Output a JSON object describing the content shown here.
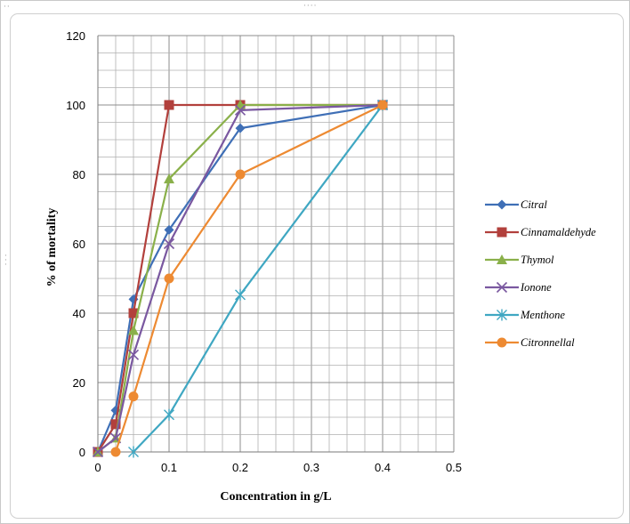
{
  "chart_data": {
    "type": "line",
    "title": "",
    "xlabel": "Concentration in g/L",
    "ylabel": "% of mortality",
    "xlim": [
      0,
      0.5
    ],
    "ylim": [
      0,
      120
    ],
    "x_ticks": [
      "0",
      "0.1",
      "0.2",
      "0.3",
      "0.4",
      "0.5"
    ],
    "y_ticks": [
      "0",
      "20",
      "40",
      "60",
      "80",
      "100",
      "120"
    ],
    "grid": true,
    "legend_position": "right",
    "series": [
      {
        "name": "Citral",
        "color": "#3F6FB6",
        "marker": "diamond",
        "points": [
          [
            0,
            0
          ],
          [
            0.025,
            12
          ],
          [
            0.05,
            44
          ],
          [
            0.1,
            64
          ],
          [
            0.2,
            93.3
          ],
          [
            0.4,
            100
          ]
        ]
      },
      {
        "name": "Cinnamaldehyde",
        "color": "#B2403C",
        "marker": "square",
        "points": [
          [
            0,
            0
          ],
          [
            0.025,
            8
          ],
          [
            0.05,
            40
          ],
          [
            0.1,
            100
          ],
          [
            0.2,
            100
          ],
          [
            0.4,
            100
          ]
        ]
      },
      {
        "name": "Thymol",
        "color": "#8AB04A",
        "marker": "triangle",
        "points": [
          [
            0,
            0
          ],
          [
            0.025,
            4
          ],
          [
            0.05,
            35
          ],
          [
            0.1,
            78.7
          ],
          [
            0.2,
            100
          ],
          [
            0.4,
            100
          ]
        ]
      },
      {
        "name": "Ionone",
        "color": "#7A58A0",
        "marker": "x",
        "points": [
          [
            0,
            0
          ],
          [
            0.025,
            4
          ],
          [
            0.05,
            28
          ],
          [
            0.1,
            60
          ],
          [
            0.2,
            98.5
          ],
          [
            0.4,
            100
          ]
        ]
      },
      {
        "name": "Menthone",
        "color": "#3FA7C2",
        "marker": "star",
        "points": [
          [
            0.05,
            0
          ],
          [
            0.1,
            10.7
          ],
          [
            0.2,
            45.3
          ],
          [
            0.4,
            100
          ]
        ]
      },
      {
        "name": "Citronnellal",
        "color": "#ED8A32",
        "marker": "circle",
        "points": [
          [
            0.025,
            0
          ],
          [
            0.05,
            16
          ],
          [
            0.1,
            50
          ],
          [
            0.2,
            80
          ],
          [
            0.4,
            100
          ]
        ]
      }
    ]
  }
}
